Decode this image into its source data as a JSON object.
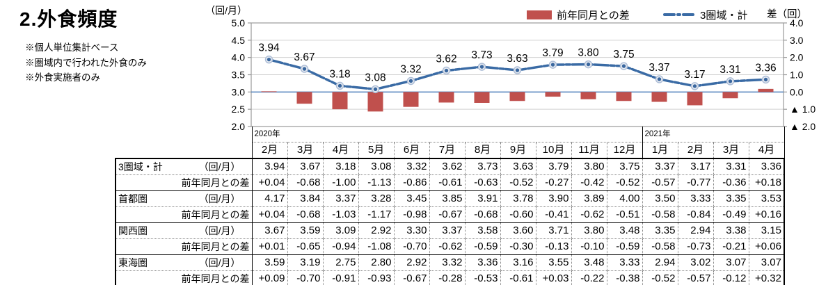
{
  "header": {
    "title": "2.外食頻度",
    "notes": [
      "※個人単位集計ベース",
      "※圏域内で行われた外食のみ",
      "※外食実施者のみ"
    ]
  },
  "chart_data": {
    "type": "combo-bar-line",
    "title": "",
    "categories": [
      "2月",
      "3月",
      "4月",
      "5月",
      "6月",
      "7月",
      "8月",
      "9月",
      "10月",
      "11月",
      "12月",
      "1月",
      "2月",
      "3月",
      "4月"
    ],
    "left_axis": {
      "title": "（回/月）",
      "min": 2.0,
      "max": 5.0,
      "step": 0.5,
      "ticks": [
        "5.0",
        "4.5",
        "4.0",
        "3.5",
        "3.0",
        "2.5",
        "2.0"
      ]
    },
    "right_axis": {
      "title": "差（回）",
      "min": -2.0,
      "max": 4.0,
      "step": 1.0,
      "ticks": [
        "4.0",
        "3.0",
        "2.0",
        "1.0",
        "0.0",
        "▲ 1.0",
        "▲ 2.0"
      ]
    },
    "legend": [
      {
        "label": "前年同月との差",
        "type": "bar",
        "color": "#C0504D"
      },
      {
        "label": "3圏域・計",
        "type": "line",
        "color": "#3A6BA5"
      }
    ],
    "line_series": {
      "name": "3圏域・計",
      "values": [
        3.94,
        3.67,
        3.18,
        3.08,
        3.32,
        3.62,
        3.73,
        3.63,
        3.79,
        3.8,
        3.75,
        3.37,
        3.17,
        3.31,
        3.36
      ],
      "labels": [
        "3.94",
        "3.67",
        "3.18",
        "3.08",
        "3.32",
        "3.62",
        "3.73",
        "3.63",
        "3.79",
        "3.80",
        "3.75",
        "3.37",
        "3.17",
        "3.31",
        "3.36"
      ]
    },
    "bar_series": {
      "name": "前年同月との差",
      "values": [
        0.04,
        -0.68,
        -1.0,
        -1.13,
        -0.86,
        -0.61,
        -0.63,
        -0.52,
        -0.27,
        -0.42,
        -0.52,
        -0.57,
        -0.77,
        -0.36,
        0.18
      ]
    },
    "colors": {
      "bar": "#C0504D",
      "line": "#3A6BA5",
      "zero_line": "#4F81BD",
      "grid": "#D0D0D0",
      "plot_border": "#999999",
      "marker_halo": "#E8ECF2",
      "marker_ring": "#ADBDD6",
      "marker_dot": "#3A679F"
    }
  },
  "table": {
    "year_groups": [
      {
        "label": "2020年",
        "span": 11
      },
      {
        "label": "2021年",
        "span": 4
      }
    ],
    "months": [
      "2月",
      "3月",
      "4月",
      "5月",
      "6月",
      "7月",
      "8月",
      "9月",
      "10月",
      "11月",
      "12月",
      "1月",
      "2月",
      "3月",
      "4月"
    ],
    "rows": [
      {
        "kind": "main",
        "name": "3圏域・計",
        "unit": "（回/月）",
        "values": [
          "3.94",
          "3.67",
          "3.18",
          "3.08",
          "3.32",
          "3.62",
          "3.73",
          "3.63",
          "3.79",
          "3.80",
          "3.75",
          "3.37",
          "3.17",
          "3.31",
          "3.36"
        ]
      },
      {
        "kind": "diff",
        "name": "前年同月との差",
        "values": [
          "+0.04",
          "-0.68",
          "-1.00",
          "-1.13",
          "-0.86",
          "-0.61",
          "-0.63",
          "-0.52",
          "-0.27",
          "-0.42",
          "-0.52",
          "-0.57",
          "-0.77",
          "-0.36",
          "+0.18"
        ]
      },
      {
        "kind": "main",
        "name": "首都圏",
        "unit": "（回/月）",
        "values": [
          "4.17",
          "3.84",
          "3.37",
          "3.28",
          "3.45",
          "3.85",
          "3.91",
          "3.78",
          "3.90",
          "3.89",
          "4.00",
          "3.50",
          "3.33",
          "3.35",
          "3.53"
        ]
      },
      {
        "kind": "diff",
        "name": "前年同月との差",
        "values": [
          "+0.04",
          "-0.68",
          "-1.03",
          "-1.17",
          "-0.98",
          "-0.67",
          "-0.68",
          "-0.60",
          "-0.41",
          "-0.62",
          "-0.51",
          "-0.58",
          "-0.84",
          "-0.49",
          "+0.16"
        ]
      },
      {
        "kind": "main",
        "name": "関西圏",
        "unit": "（回/月）",
        "values": [
          "3.67",
          "3.59",
          "3.09",
          "2.92",
          "3.30",
          "3.37",
          "3.58",
          "3.60",
          "3.71",
          "3.80",
          "3.48",
          "3.35",
          "2.94",
          "3.38",
          "3.15"
        ]
      },
      {
        "kind": "diff",
        "name": "前年同月との差",
        "values": [
          "+0.01",
          "-0.65",
          "-0.94",
          "-1.08",
          "-0.70",
          "-0.62",
          "-0.59",
          "-0.30",
          "-0.13",
          "-0.10",
          "-0.59",
          "-0.58",
          "-0.73",
          "-0.21",
          "+0.06"
        ]
      },
      {
        "kind": "main",
        "name": "東海圏",
        "unit": "（回/月）",
        "values": [
          "3.59",
          "3.19",
          "2.75",
          "2.80",
          "2.92",
          "3.32",
          "3.36",
          "3.16",
          "3.55",
          "3.48",
          "3.33",
          "2.94",
          "3.02",
          "3.07",
          "3.07"
        ]
      },
      {
        "kind": "diff",
        "name": "前年同月との差",
        "values": [
          "+0.09",
          "-0.70",
          "-0.91",
          "-0.93",
          "-0.67",
          "-0.28",
          "-0.53",
          "-0.61",
          "+0.03",
          "-0.22",
          "-0.38",
          "-0.52",
          "-0.57",
          "-0.12",
          "+0.32"
        ]
      }
    ]
  }
}
